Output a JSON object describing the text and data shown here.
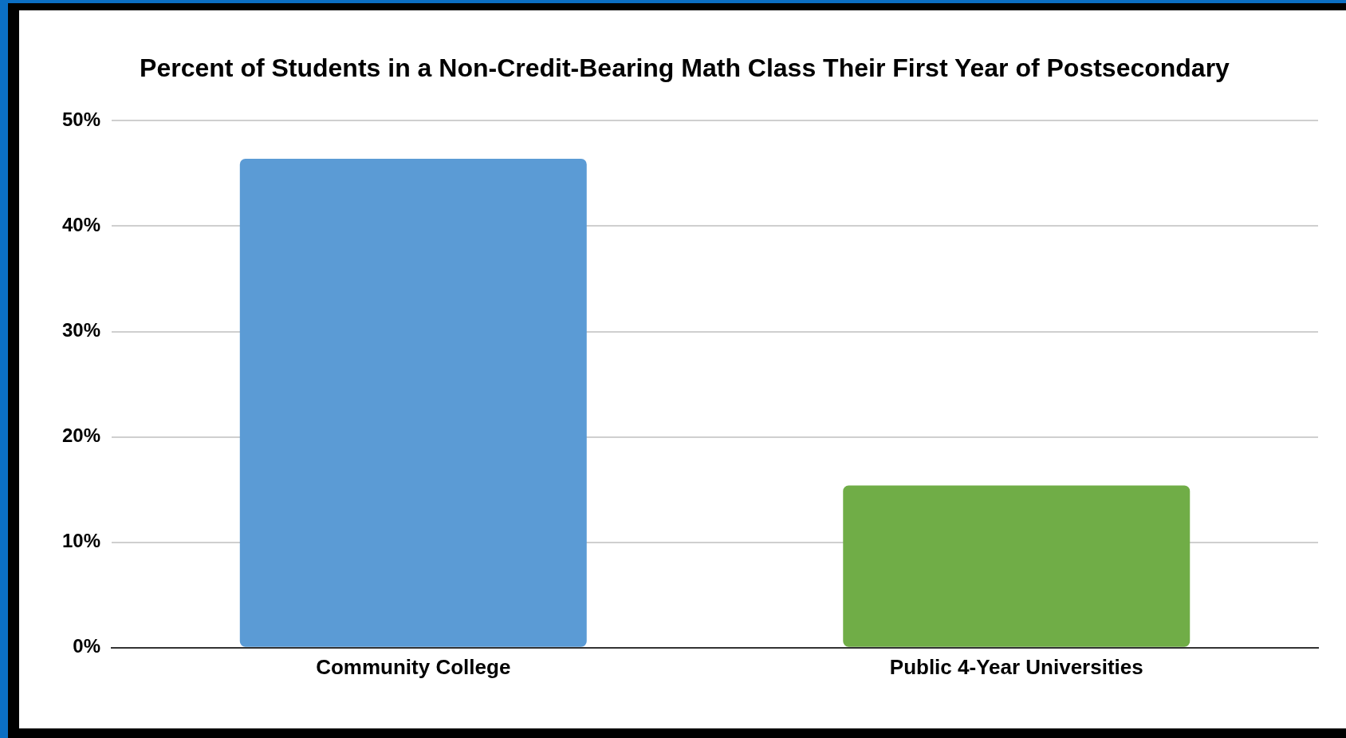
{
  "chart_data": {
    "type": "bar",
    "title": "Percent of Students in a Non-Credit-Bearing Math Class Their First Year of Postsecondary",
    "categories": [
      "Community College",
      "Public 4-Year Universities"
    ],
    "values": [
      46.4,
      15.4
    ],
    "colors": [
      "#5b9bd5",
      "#70ad47"
    ],
    "ylim": [
      0,
      50
    ],
    "yticks": [
      {
        "value": 0,
        "label": "0%"
      },
      {
        "value": 10,
        "label": "10%"
      },
      {
        "value": 20,
        "label": "20%"
      },
      {
        "value": 30,
        "label": "30%"
      },
      {
        "value": 40,
        "label": "40%"
      },
      {
        "value": 50,
        "label": "50%"
      }
    ],
    "grid": "y"
  }
}
